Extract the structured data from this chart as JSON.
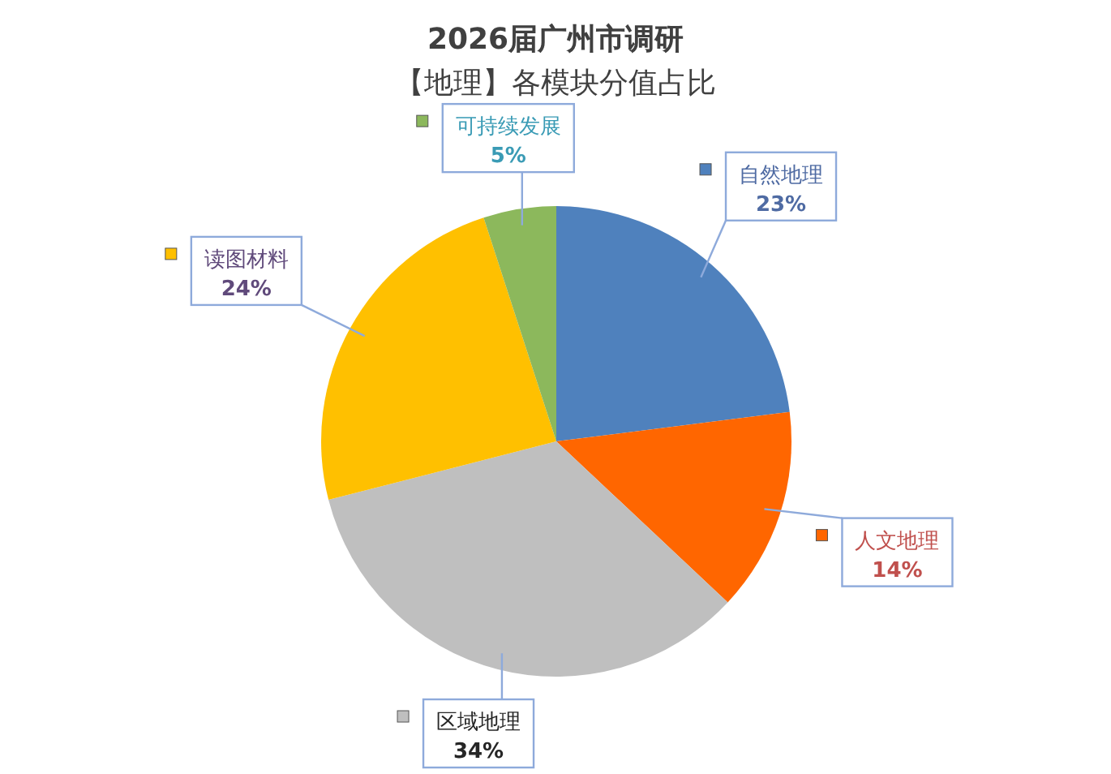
{
  "chart_data": {
    "type": "pie",
    "title": "2026届广州市调研",
    "subtitle": "【地理】各模块分值占比",
    "categories": [
      "自然地理",
      "人文地理",
      "区域地理",
      "读图材料",
      "可持续发展"
    ],
    "values": [
      23,
      14,
      34,
      24,
      5
    ],
    "colors": [
      "#4f81bd",
      "#ff6600",
      "#bfbfbf",
      "#ffc000",
      "#8cb85c"
    ],
    "value_labels": [
      "23%",
      "14%",
      "34%",
      "24%",
      "5%"
    ],
    "legend": "center"
  }
}
